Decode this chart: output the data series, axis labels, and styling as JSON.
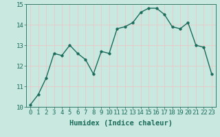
{
  "x": [
    0,
    1,
    2,
    3,
    4,
    5,
    6,
    7,
    8,
    9,
    10,
    11,
    12,
    13,
    14,
    15,
    16,
    17,
    18,
    19,
    20,
    21,
    22,
    23
  ],
  "y": [
    10.1,
    10.6,
    11.4,
    12.6,
    12.5,
    13.0,
    12.6,
    12.3,
    11.6,
    12.7,
    12.6,
    13.8,
    13.9,
    14.1,
    14.6,
    14.8,
    14.8,
    14.5,
    13.9,
    13.8,
    14.1,
    13.0,
    12.9,
    11.6
  ],
  "line_color": "#1a6b5a",
  "marker": "o",
  "markersize": 2.5,
  "linewidth": 1.0,
  "bg_color": "#c8e8e0",
  "grid_color": "#e8c8c8",
  "xlabel": "Humidex (Indice chaleur)",
  "xlim": [
    -0.5,
    23.5
  ],
  "ylim": [
    10,
    15
  ],
  "yticks": [
    10,
    11,
    12,
    13,
    14,
    15
  ],
  "xticks": [
    0,
    1,
    2,
    3,
    4,
    5,
    6,
    7,
    8,
    9,
    10,
    11,
    12,
    13,
    14,
    15,
    16,
    17,
    18,
    19,
    20,
    21,
    22,
    23
  ],
  "tick_color": "#1a6b5a",
  "xlabel_fontsize": 7.5,
  "tick_fontsize": 6.5
}
